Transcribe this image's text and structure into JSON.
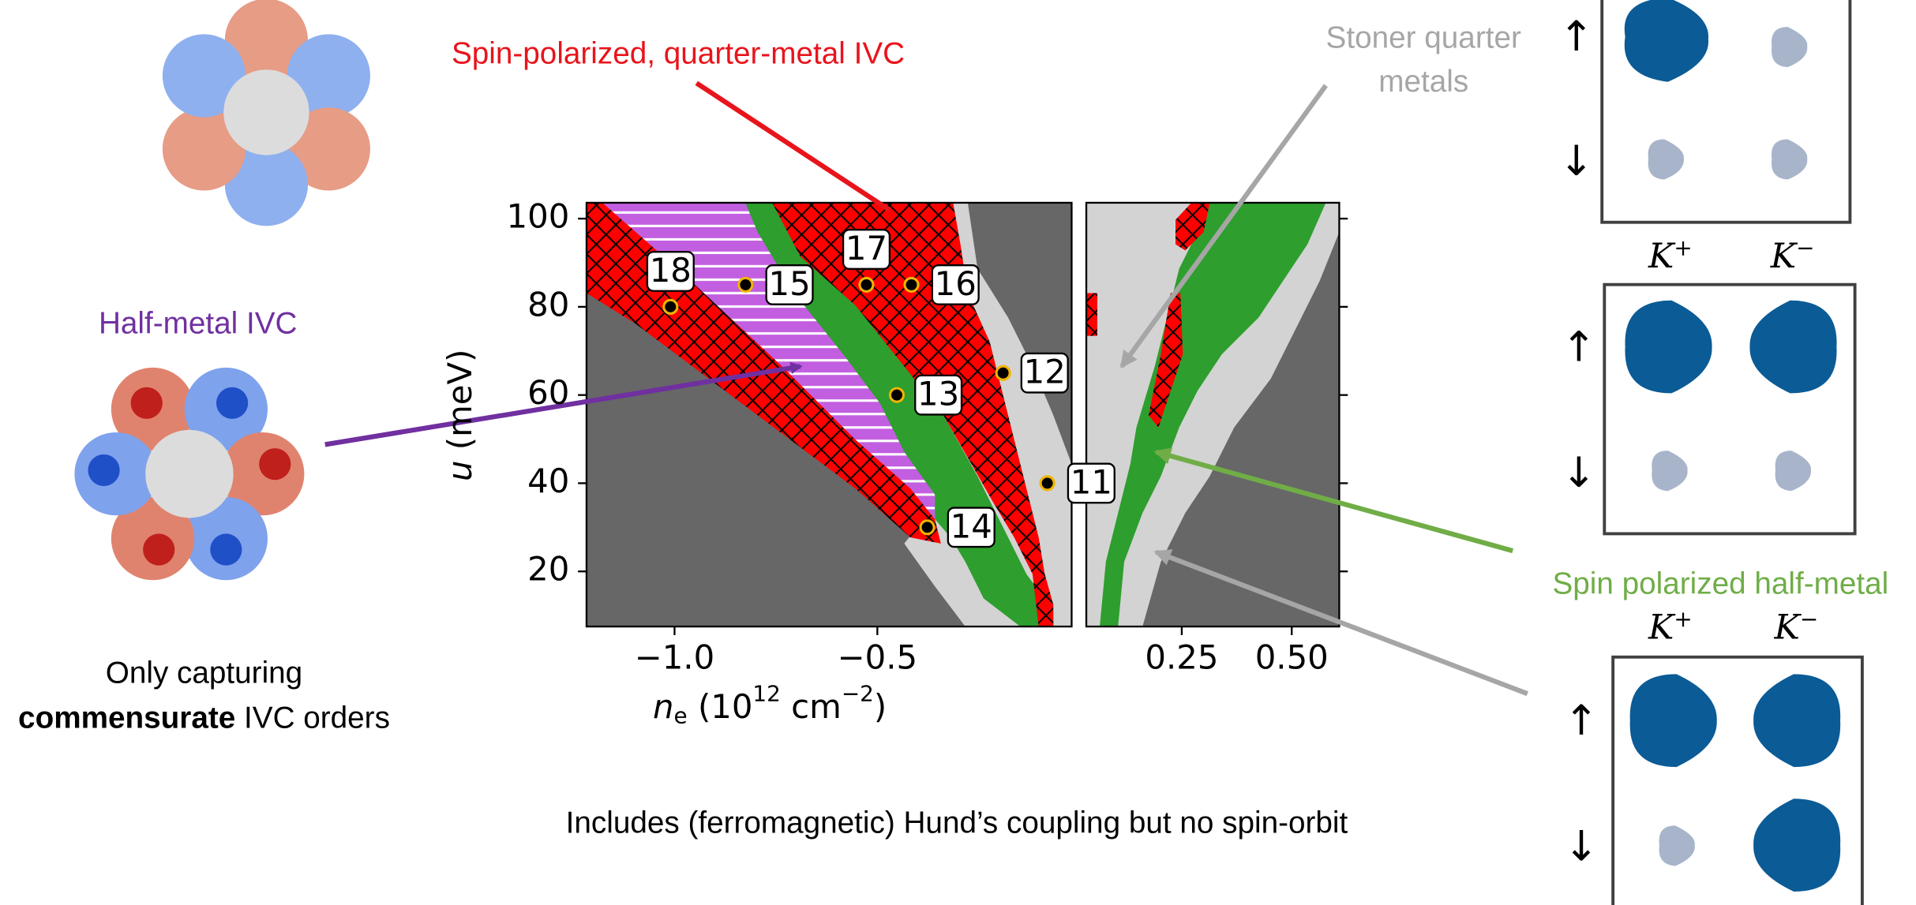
{
  "chart_data": {
    "type": "scatter",
    "xlabel": [
      "n",
      "e",
      " (10",
      "12",
      " cm",
      "−2",
      ")"
    ],
    "ylabel": [
      "u",
      " (meV)"
    ],
    "ylim": [
      7.5,
      103.6
    ],
    "yticks": [
      20,
      40,
      60,
      80,
      100
    ],
    "panels": [
      {
        "xlim": [
          -1.217,
          -0.021
        ],
        "xticks": [
          {
            "value": -1.0,
            "label": "−1.0"
          },
          {
            "value": -0.5,
            "label": "−0.5"
          }
        ]
      },
      {
        "xlim": [
          0.033,
          0.608
        ],
        "xticks": [
          0.25,
          {
            "value": 0.5,
            "label": "0.50"
          }
        ]
      }
    ],
    "x": [
      -1.01,
      -0.825,
      -0.527,
      -0.416,
      -0.19,
      -0.452,
      -0.081,
      -0.377
    ],
    "y": [
      80,
      85,
      85,
      85,
      65,
      60,
      40,
      30
    ],
    "labels": [
      "18",
      "15",
      "17",
      "16",
      "12",
      "13",
      "11",
      "14"
    ],
    "color": "#000000",
    "edge_color": "#f0b400"
  },
  "annotations": {
    "quarter_metal_ivc": "Spin-polarized, quarter-metal IVC",
    "stoner": [
      "Stoner quarter",
      "metals"
    ],
    "half_metal": "Spin polarized half-metal",
    "half_metal_ivc": "Half-metal IVC"
  },
  "left_caption": {
    "line1": "Only capturing",
    "emphasis": "commensurate",
    "rest": " IVC orders"
  },
  "footer": "Includes (ferromagnetic) Hund’s coupling but no spin-orbit",
  "spin_panels": {
    "spins": [
      "↑",
      "↓"
    ],
    "valleys": [
      {
        "base": "K",
        "sup": "+"
      },
      {
        "base": "K",
        "sup": "−"
      }
    ]
  }
}
